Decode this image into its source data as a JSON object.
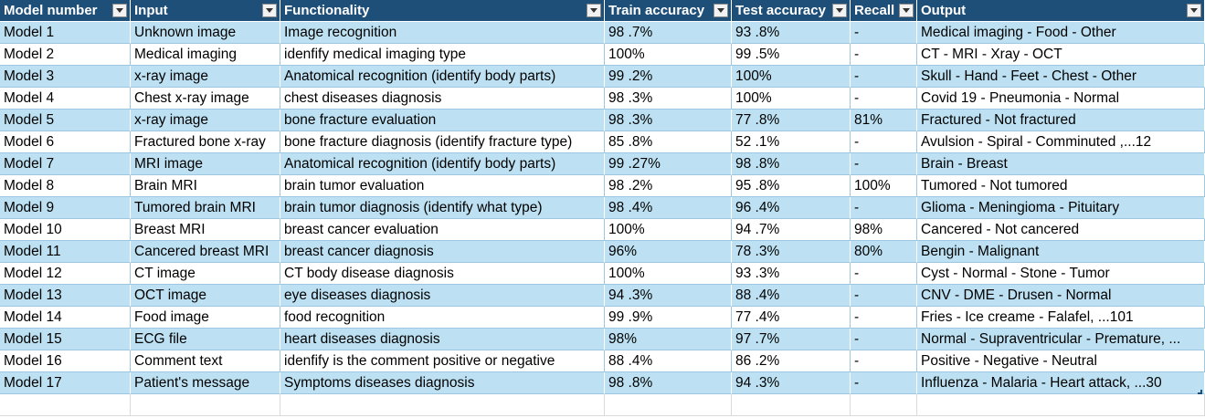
{
  "table": {
    "headers": [
      "Model number",
      "Input",
      "Functionality",
      "Train accuracy",
      "Test accuracy",
      "Recall",
      "Output"
    ],
    "rows": [
      [
        "Model 1",
        "Unknown image",
        "Image recognition",
        "98 .7%",
        "93 .8%",
        "-",
        "Medical imaging - Food - Other"
      ],
      [
        "Model 2",
        "Medical imaging",
        "idenfify medical imaging type",
        "100%",
        "99 .5%",
        "-",
        "CT - MRI - Xray - OCT"
      ],
      [
        "Model 3",
        "x-ray image",
        "Anatomical recognition (identify body parts)",
        "99 .2%",
        "100%",
        "-",
        "Skull - Hand - Feet - Chest - Other"
      ],
      [
        "Model 4",
        "Chest x-ray image",
        "chest diseases diagnosis",
        "98 .3%",
        "100%",
        "-",
        "Covid 19 - Pneumonia - Normal"
      ],
      [
        "Model 5",
        "x-ray image",
        "bone fracture evaluation",
        "98 .3%",
        "77 .8%",
        "81%",
        "Fractured - Not fractured"
      ],
      [
        "Model 6",
        "Fractured bone x-ray",
        "bone fracture diagnosis (identify fracture type)",
        "85 .8%",
        "52 .1%",
        "-",
        "Avulsion - Spiral - Comminuted ,...12"
      ],
      [
        "Model 7",
        "MRI image",
        "Anatomical recognition (identify body parts)",
        "99 .27%",
        "98 .8%",
        "-",
        " Brain - Breast"
      ],
      [
        "Model 8",
        "Brain MRI",
        "brain tumor evaluation",
        "98 .2%",
        "95 .8%",
        "100%",
        "Tumored - Not tumored"
      ],
      [
        "Model 9",
        "Tumored brain MRI",
        "brain tumor diagnosis (identify what type)",
        "98 .4%",
        "96 .4%",
        "-",
        "Glioma - Meningioma - Pituitary"
      ],
      [
        "Model 10",
        "Breast MRI",
        "breast cancer evaluation",
        "100%",
        "94 .7%",
        "98%",
        "Cancered - Not cancered"
      ],
      [
        "Model 11",
        "Cancered breast MRI",
        "breast cancer diagnosis",
        "96%",
        "78 .3%",
        "80%",
        "Bengin - Malignant"
      ],
      [
        "Model 12",
        "CT image",
        "CT body disease diagnosis",
        "100%",
        "93 .3%",
        "-",
        "Cyst - Normal - Stone - Tumor"
      ],
      [
        "Model 13",
        "OCT image",
        "eye diseases diagnosis",
        "94 .3%",
        "88 .4%",
        "-",
        "CNV - DME - Drusen - Normal"
      ],
      [
        "Model 14",
        "Food image",
        "food recognition",
        "99 .9%",
        "77 .4%",
        "-",
        "Fries - Ice creame - Falafel, ...101"
      ],
      [
        "Model 15",
        "ECG file",
        "heart diseases diagnosis",
        "98%",
        "97 .7%",
        "-",
        "Normal - Supraventricular - Premature, ..."
      ],
      [
        "Model 16",
        "Comment text",
        "idenfify is the comment positive or negative",
        "88 .4%",
        "86 .2%",
        "-",
        "Positive - Negative - Neutral"
      ],
      [
        "Model 17",
        "Patient's message",
        "Symptoms diseases diagnosis",
        "98 .8%",
        "94 .3%",
        "-",
        "Influenza - Malaria - Heart attack, ...30"
      ]
    ]
  },
  "icons": {
    "filter": "filter-dropdown-icon"
  },
  "colors": {
    "header_bg": "#1e4f78",
    "band_row": "#bde1f2",
    "plain_row": "#ffffff"
  }
}
